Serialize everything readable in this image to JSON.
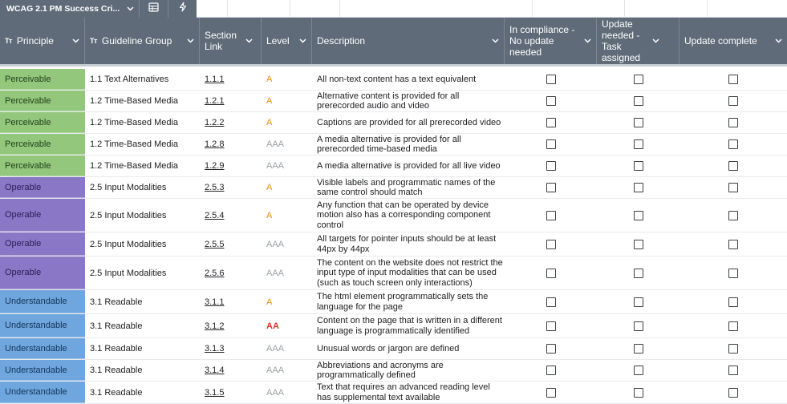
{
  "tab": {
    "title": "WCAG 2.1 PM Success Cri...",
    "table_icon": "table-icon",
    "bolt_icon": "bolt-icon"
  },
  "header": {
    "principle": "Principle",
    "guideline_group": "Guideline Group",
    "section_link": "Section Link",
    "level": "Level",
    "description": "Description",
    "in_compliance": "In compliance - No update needed",
    "update_needed": "Update needed - Task assigned",
    "update_complete": "Update complete",
    "text_type_icon": "Tт"
  },
  "rows": [
    {
      "principle": "Perceivable",
      "group": "1.1 Text Alternatives",
      "link": "1.1.1",
      "level": "A",
      "description": "All non-text content has a text equivalent"
    },
    {
      "principle": "Perceivable",
      "group": "1.2 Time-Based Media",
      "link": "1.2.1",
      "level": "A",
      "description": "Alternative content is provided for all prerecorded audio and video"
    },
    {
      "principle": "Perceivable",
      "group": "1.2 Time-Based Media",
      "link": "1.2.2",
      "level": "A",
      "description": "Captions are provided for all prerecorded video"
    },
    {
      "principle": "Perceivable",
      "group": "1.2 Time-Based Media",
      "link": "1.2.8",
      "level": "AAA",
      "description": "A media alternative is provided for all prerecorded time-based media"
    },
    {
      "principle": "Perceivable",
      "group": "1.2 Time-Based Media",
      "link": "1.2.9",
      "level": "AAA",
      "description": "A media alternative is provided for all live video"
    },
    {
      "principle": "Operable",
      "group": "2.5 Input Modalities",
      "link": "2.5.3",
      "level": "A",
      "description": "Visible labels and programmatic names of the same control should match"
    },
    {
      "principle": "Operable",
      "group": "2.5 Input Modalities",
      "link": "2.5.4",
      "level": "A",
      "description": "Any function that can be operated by device motion also has a corresponding component control"
    },
    {
      "principle": "Operable",
      "group": "2.5 Input Modalities",
      "link": "2.5.5",
      "level": "AAA",
      "description": "All targets for pointer inputs should be at least 44px by 44px"
    },
    {
      "principle": "Operable",
      "group": "2.5 Input Modalities",
      "link": "2.5.6",
      "level": "AAA",
      "description": "The content on the website does not restrict the input type of input modalities that can be used (such as touch screen only interactions)"
    },
    {
      "principle": "Understandable",
      "group": "3.1 Readable",
      "link": "3.1.1",
      "level": "A",
      "description": "The html element programmatically sets the language for the page"
    },
    {
      "principle": "Understandable",
      "group": "3.1 Readable",
      "link": "3.1.2",
      "level": "AA",
      "description": "Content on the page that is written in a different language is programmatically identified"
    },
    {
      "principle": "Understandable",
      "group": "3.1 Readable",
      "link": "3.1.3",
      "level": "AAA",
      "description": "Unusual words or jargon are defined"
    },
    {
      "principle": "Understandable",
      "group": "3.1 Readable",
      "link": "3.1.4",
      "level": "AAA",
      "description": "Abbreviations and acronyms are programmatically defined"
    },
    {
      "principle": "Understandable",
      "group": "3.1 Readable",
      "link": "3.1.5",
      "level": "AAA",
      "description": "Text that requires an advanced reading level has supplemental text available"
    }
  ],
  "colors": {
    "header": "#5f6b78",
    "perceivable": "#93c77c",
    "operable": "#8a77c5",
    "understandable": "#6fa6dd",
    "level_a": "#f08c00",
    "level_aa": "#d93025",
    "level_aaa": "#9aa0a6"
  }
}
